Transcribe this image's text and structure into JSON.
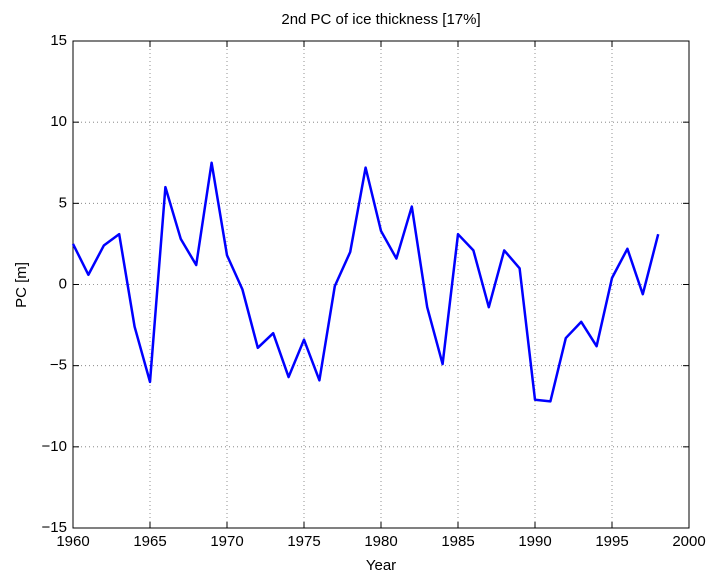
{
  "chart_data": {
    "type": "line",
    "title": "2nd PC of ice thickness [17%]",
    "x_label": "Year",
    "y_label": "PC [m]",
    "x": [
      1960,
      1961,
      1962,
      1963,
      1964,
      1965,
      1966,
      1967,
      1968,
      1969,
      1970,
      1971,
      1972,
      1973,
      1974,
      1975,
      1976,
      1977,
      1978,
      1979,
      1980,
      1981,
      1982,
      1983,
      1984,
      1985,
      1986,
      1987,
      1988,
      1989,
      1990,
      1991,
      1992,
      1993,
      1994,
      1995,
      1996,
      1997,
      1998
    ],
    "series": [
      {
        "color": "#0000ff",
        "values": [
          2.5,
          0.6,
          2.4,
          3.1,
          -2.6,
          -6.0,
          6.0,
          2.8,
          1.2,
          7.5,
          1.8,
          -0.3,
          -3.9,
          -3.0,
          -5.7,
          -3.4,
          -5.9,
          -0.1,
          2.0,
          7.2,
          3.3,
          1.6,
          4.8,
          -1.4,
          -4.9,
          3.1,
          2.1,
          -1.4,
          2.1,
          1.0,
          -7.1,
          -7.2,
          -3.3,
          -2.3,
          -3.8,
          0.4,
          2.2,
          -0.6,
          3.1
        ]
      }
    ],
    "xlim": [
      1960,
      2000
    ],
    "xticks": [
      1960,
      1965,
      1970,
      1975,
      1980,
      1985,
      1990,
      1995,
      2000
    ],
    "ylim": [
      -15,
      15
    ],
    "yticks": [
      {
        "value": -15,
        "label": "−15"
      },
      {
        "value": -10,
        "label": "−10"
      },
      {
        "value": -5,
        "label": "−5"
      },
      0,
      5,
      10,
      15
    ],
    "grid": true
  }
}
